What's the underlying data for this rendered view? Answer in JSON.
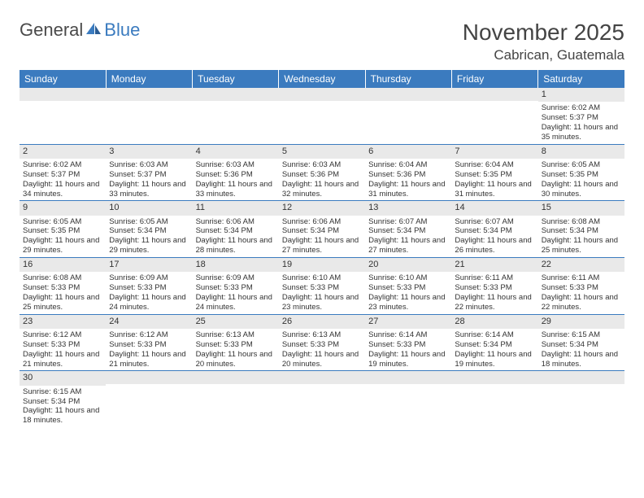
{
  "header": {
    "logo_general": "General",
    "logo_blue": "Blue",
    "month_title": "November 2025",
    "location": "Cabrican, Guatemala"
  },
  "calendar": {
    "header_bg": "#3b7bbf",
    "header_fg": "#ffffff",
    "daynum_bg": "#e9e9e9",
    "border_color": "#3b7bbf",
    "columns": [
      "Sunday",
      "Monday",
      "Tuesday",
      "Wednesday",
      "Thursday",
      "Friday",
      "Saturday"
    ],
    "weeks": [
      [
        {
          "day": "",
          "sunrise": "",
          "sunset": "",
          "daylight": ""
        },
        {
          "day": "",
          "sunrise": "",
          "sunset": "",
          "daylight": ""
        },
        {
          "day": "",
          "sunrise": "",
          "sunset": "",
          "daylight": ""
        },
        {
          "day": "",
          "sunrise": "",
          "sunset": "",
          "daylight": ""
        },
        {
          "day": "",
          "sunrise": "",
          "sunset": "",
          "daylight": ""
        },
        {
          "day": "",
          "sunrise": "",
          "sunset": "",
          "daylight": ""
        },
        {
          "day": "1",
          "sunrise": "Sunrise: 6:02 AM",
          "sunset": "Sunset: 5:37 PM",
          "daylight": "Daylight: 11 hours and 35 minutes."
        }
      ],
      [
        {
          "day": "2",
          "sunrise": "Sunrise: 6:02 AM",
          "sunset": "Sunset: 5:37 PM",
          "daylight": "Daylight: 11 hours and 34 minutes."
        },
        {
          "day": "3",
          "sunrise": "Sunrise: 6:03 AM",
          "sunset": "Sunset: 5:37 PM",
          "daylight": "Daylight: 11 hours and 33 minutes."
        },
        {
          "day": "4",
          "sunrise": "Sunrise: 6:03 AM",
          "sunset": "Sunset: 5:36 PM",
          "daylight": "Daylight: 11 hours and 33 minutes."
        },
        {
          "day": "5",
          "sunrise": "Sunrise: 6:03 AM",
          "sunset": "Sunset: 5:36 PM",
          "daylight": "Daylight: 11 hours and 32 minutes."
        },
        {
          "day": "6",
          "sunrise": "Sunrise: 6:04 AM",
          "sunset": "Sunset: 5:36 PM",
          "daylight": "Daylight: 11 hours and 31 minutes."
        },
        {
          "day": "7",
          "sunrise": "Sunrise: 6:04 AM",
          "sunset": "Sunset: 5:35 PM",
          "daylight": "Daylight: 11 hours and 31 minutes."
        },
        {
          "day": "8",
          "sunrise": "Sunrise: 6:05 AM",
          "sunset": "Sunset: 5:35 PM",
          "daylight": "Daylight: 11 hours and 30 minutes."
        }
      ],
      [
        {
          "day": "9",
          "sunrise": "Sunrise: 6:05 AM",
          "sunset": "Sunset: 5:35 PM",
          "daylight": "Daylight: 11 hours and 29 minutes."
        },
        {
          "day": "10",
          "sunrise": "Sunrise: 6:05 AM",
          "sunset": "Sunset: 5:34 PM",
          "daylight": "Daylight: 11 hours and 29 minutes."
        },
        {
          "day": "11",
          "sunrise": "Sunrise: 6:06 AM",
          "sunset": "Sunset: 5:34 PM",
          "daylight": "Daylight: 11 hours and 28 minutes."
        },
        {
          "day": "12",
          "sunrise": "Sunrise: 6:06 AM",
          "sunset": "Sunset: 5:34 PM",
          "daylight": "Daylight: 11 hours and 27 minutes."
        },
        {
          "day": "13",
          "sunrise": "Sunrise: 6:07 AM",
          "sunset": "Sunset: 5:34 PM",
          "daylight": "Daylight: 11 hours and 27 minutes."
        },
        {
          "day": "14",
          "sunrise": "Sunrise: 6:07 AM",
          "sunset": "Sunset: 5:34 PM",
          "daylight": "Daylight: 11 hours and 26 minutes."
        },
        {
          "day": "15",
          "sunrise": "Sunrise: 6:08 AM",
          "sunset": "Sunset: 5:34 PM",
          "daylight": "Daylight: 11 hours and 25 minutes."
        }
      ],
      [
        {
          "day": "16",
          "sunrise": "Sunrise: 6:08 AM",
          "sunset": "Sunset: 5:33 PM",
          "daylight": "Daylight: 11 hours and 25 minutes."
        },
        {
          "day": "17",
          "sunrise": "Sunrise: 6:09 AM",
          "sunset": "Sunset: 5:33 PM",
          "daylight": "Daylight: 11 hours and 24 minutes."
        },
        {
          "day": "18",
          "sunrise": "Sunrise: 6:09 AM",
          "sunset": "Sunset: 5:33 PM",
          "daylight": "Daylight: 11 hours and 24 minutes."
        },
        {
          "day": "19",
          "sunrise": "Sunrise: 6:10 AM",
          "sunset": "Sunset: 5:33 PM",
          "daylight": "Daylight: 11 hours and 23 minutes."
        },
        {
          "day": "20",
          "sunrise": "Sunrise: 6:10 AM",
          "sunset": "Sunset: 5:33 PM",
          "daylight": "Daylight: 11 hours and 23 minutes."
        },
        {
          "day": "21",
          "sunrise": "Sunrise: 6:11 AM",
          "sunset": "Sunset: 5:33 PM",
          "daylight": "Daylight: 11 hours and 22 minutes."
        },
        {
          "day": "22",
          "sunrise": "Sunrise: 6:11 AM",
          "sunset": "Sunset: 5:33 PM",
          "daylight": "Daylight: 11 hours and 22 minutes."
        }
      ],
      [
        {
          "day": "23",
          "sunrise": "Sunrise: 6:12 AM",
          "sunset": "Sunset: 5:33 PM",
          "daylight": "Daylight: 11 hours and 21 minutes."
        },
        {
          "day": "24",
          "sunrise": "Sunrise: 6:12 AM",
          "sunset": "Sunset: 5:33 PM",
          "daylight": "Daylight: 11 hours and 21 minutes."
        },
        {
          "day": "25",
          "sunrise": "Sunrise: 6:13 AM",
          "sunset": "Sunset: 5:33 PM",
          "daylight": "Daylight: 11 hours and 20 minutes."
        },
        {
          "day": "26",
          "sunrise": "Sunrise: 6:13 AM",
          "sunset": "Sunset: 5:33 PM",
          "daylight": "Daylight: 11 hours and 20 minutes."
        },
        {
          "day": "27",
          "sunrise": "Sunrise: 6:14 AM",
          "sunset": "Sunset: 5:33 PM",
          "daylight": "Daylight: 11 hours and 19 minutes."
        },
        {
          "day": "28",
          "sunrise": "Sunrise: 6:14 AM",
          "sunset": "Sunset: 5:34 PM",
          "daylight": "Daylight: 11 hours and 19 minutes."
        },
        {
          "day": "29",
          "sunrise": "Sunrise: 6:15 AM",
          "sunset": "Sunset: 5:34 PM",
          "daylight": "Daylight: 11 hours and 18 minutes."
        }
      ],
      [
        {
          "day": "30",
          "sunrise": "Sunrise: 6:15 AM",
          "sunset": "Sunset: 5:34 PM",
          "daylight": "Daylight: 11 hours and 18 minutes."
        },
        {
          "day": "",
          "sunrise": "",
          "sunset": "",
          "daylight": ""
        },
        {
          "day": "",
          "sunrise": "",
          "sunset": "",
          "daylight": ""
        },
        {
          "day": "",
          "sunrise": "",
          "sunset": "",
          "daylight": ""
        },
        {
          "day": "",
          "sunrise": "",
          "sunset": "",
          "daylight": ""
        },
        {
          "day": "",
          "sunrise": "",
          "sunset": "",
          "daylight": ""
        },
        {
          "day": "",
          "sunrise": "",
          "sunset": "",
          "daylight": ""
        }
      ]
    ]
  }
}
